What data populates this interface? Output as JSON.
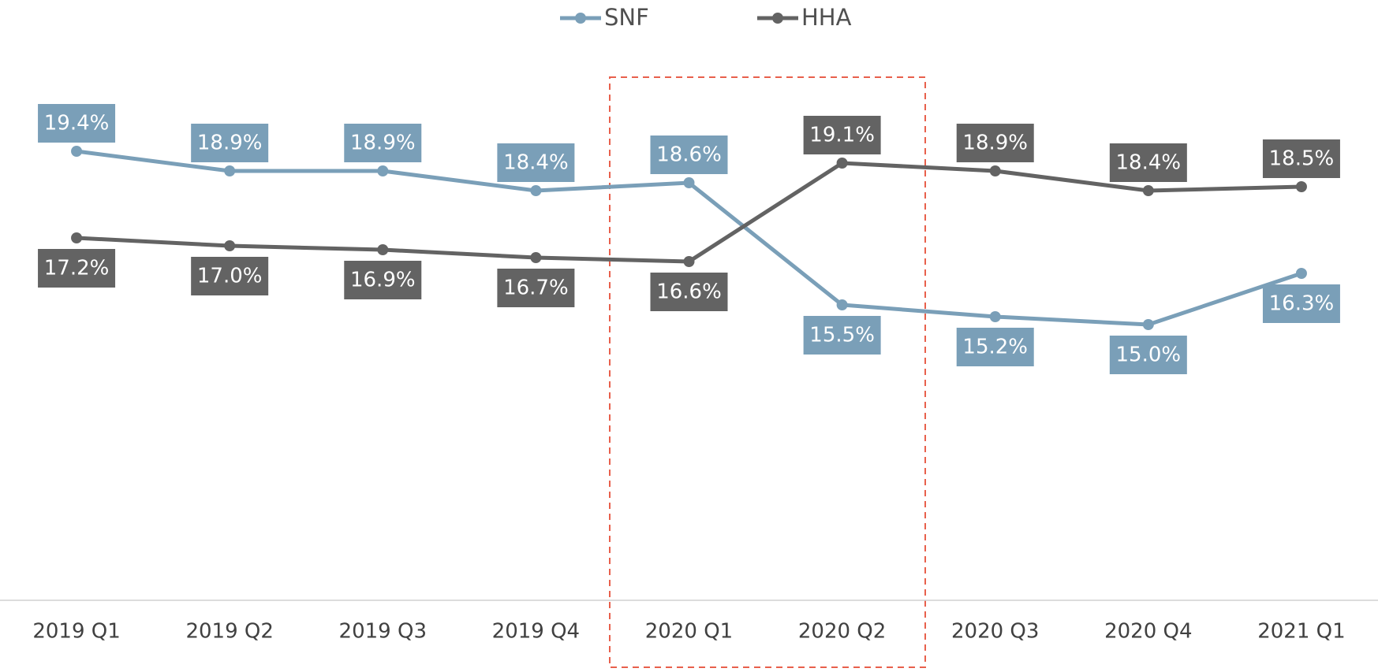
{
  "chart_data": {
    "type": "line",
    "categories": [
      "2019 Q1",
      "2019 Q2",
      "2019 Q3",
      "2019 Q4",
      "2020 Q1",
      "2020 Q2",
      "2020 Q3",
      "2020 Q4",
      "2021 Q1"
    ],
    "series": [
      {
        "name": "SNF",
        "color": "#7a9fb8",
        "values": [
          19.4,
          18.9,
          18.9,
          18.4,
          18.6,
          15.5,
          15.2,
          15.0,
          16.3
        ],
        "value_labels": [
          "19.4%",
          "18.9%",
          "18.9%",
          "18.4%",
          "18.6%",
          "15.5%",
          "15.2%",
          "15.0%",
          "16.3%"
        ]
      },
      {
        "name": "HHA",
        "color": "#636363",
        "values": [
          17.2,
          17.0,
          16.9,
          16.7,
          16.6,
          19.1,
          18.9,
          18.4,
          18.5
        ],
        "value_labels": [
          "17.2%",
          "17.0%",
          "16.9%",
          "16.7%",
          "16.6%",
          "19.1%",
          "18.9%",
          "18.4%",
          "18.5%"
        ]
      }
    ],
    "ylim": [
      8,
      20
    ],
    "legend": "top"
  }
}
